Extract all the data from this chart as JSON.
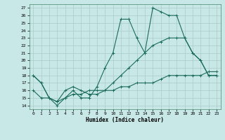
{
  "xlabel": "Humidex (Indice chaleur)",
  "bg_color": "#c8e8e8",
  "grid_color": "#b0d0d0",
  "line_color": "#1a6b5a",
  "xlim": [
    -0.5,
    23.5
  ],
  "ylim": [
    13.5,
    27.5
  ],
  "xticks": [
    0,
    1,
    2,
    3,
    4,
    5,
    6,
    7,
    8,
    9,
    10,
    11,
    12,
    13,
    14,
    15,
    16,
    17,
    18,
    19,
    20,
    21,
    22,
    23
  ],
  "yticks": [
    14,
    15,
    16,
    17,
    18,
    19,
    20,
    21,
    22,
    23,
    24,
    25,
    26,
    27
  ],
  "curve1_x": [
    0,
    1,
    2,
    3,
    4,
    5,
    6,
    7,
    8,
    9,
    10,
    11,
    12,
    13,
    14,
    15,
    16,
    17,
    18,
    19,
    20,
    21,
    22,
    23
  ],
  "curve1_y": [
    18,
    17,
    15,
    14,
    15,
    16,
    15,
    15,
    16.5,
    19,
    21,
    25.5,
    25.5,
    23,
    21,
    27,
    26.5,
    26,
    26,
    23,
    21,
    20,
    18,
    18
  ],
  "curve2_x": [
    0,
    1,
    2,
    3,
    4,
    5,
    6,
    7,
    8,
    9,
    10,
    11,
    12,
    13,
    14,
    15,
    16,
    17,
    18,
    19,
    20,
    21,
    22,
    23
  ],
  "curve2_y": [
    18,
    17,
    15,
    14.5,
    16,
    16.5,
    16,
    15.5,
    15.5,
    16,
    17,
    18,
    19,
    20,
    21,
    22,
    22.5,
    23,
    23,
    23,
    21,
    20,
    18,
    18
  ],
  "curve3_x": [
    0,
    1,
    2,
    3,
    4,
    5,
    6,
    7,
    8,
    9,
    10,
    11,
    12,
    13,
    14,
    15,
    16,
    17,
    18,
    19,
    20,
    21,
    22,
    23
  ],
  "curve3_y": [
    16,
    15,
    15,
    14.5,
    15,
    15.5,
    15.5,
    16,
    16,
    16,
    16,
    16.5,
    16.5,
    17,
    17,
    17,
    17.5,
    18,
    18,
    18,
    18,
    18,
    18.5,
    18.5
  ]
}
